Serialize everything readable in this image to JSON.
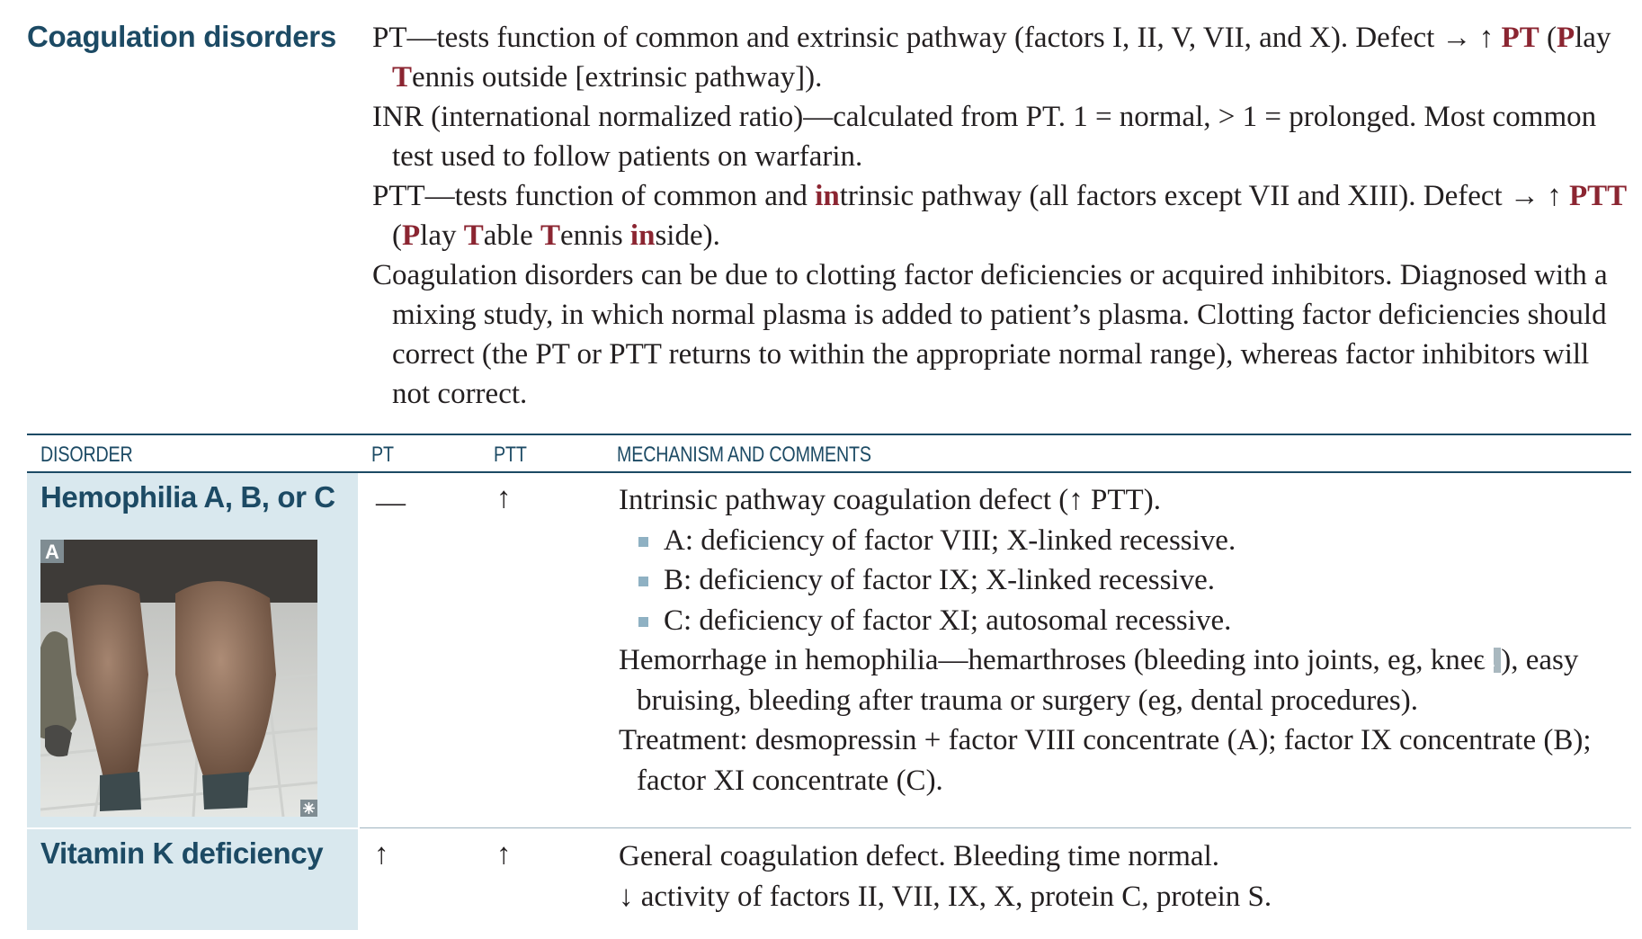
{
  "section_title": "Coagulation disorders",
  "intro": {
    "p1": {
      "a": "PT—tests function of common and extrinsic pathway (factors I, II, V, VII, and X). Defect → ↑ ",
      "b": "PT",
      "c": " (",
      "d": "P",
      "e": "lay ",
      "f": "T",
      "g": "ennis outside [extrinsic pathway])."
    },
    "p2": "INR (international normalized ratio)—calculated from PT. 1 = normal, > 1 = prolonged. Most common test used to follow patients on warfarin.",
    "p3": {
      "a": "PTT—tests function of common and ",
      "b": "in",
      "c": "trinsic pathway (all factors except VII and XIII). Defect → ↑ ",
      "d": "PTT",
      "e": " (",
      "f": "P",
      "g": "lay ",
      "h": "T",
      "i": "able ",
      "j": "T",
      "k": "ennis ",
      "l": "in",
      "m": "side)."
    },
    "p4": "Coagulation disorders can be due to clotting factor deficiencies or acquired inhibitors. Diagnosed with a mixing study, in which normal plasma is added to patient’s plasma. Clotting factor deficiencies should correct (the PT or PTT returns to within the appropriate normal range), whereas factor inhibitors will not correct."
  },
  "table": {
    "headers": {
      "disorder": "DISORDER",
      "pt": "PT",
      "ptt": "PTT",
      "mechanism": "MECHANISM AND COMMENTS"
    },
    "rows": [
      {
        "disorder": "Hemophilia A, B, or C",
        "pt": "—",
        "ptt": "↑",
        "figure_label": "A",
        "line1": "Intrinsic pathway coagulation defect (↑ PTT).",
        "bullets": [
          "A: deficiency of factor VIII; X-linked recessive.",
          "B: deficiency of factor IX; X-linked recessive.",
          "C: deficiency of factor XI; autosomal recessive."
        ],
        "hemorrhage": {
          "a": "Hemorrhage in hemophilia—hemarthroses (bleeding into joints, eg, knee ",
          "tag": "A",
          "b": "), easy bruising, bleeding after trauma or surgery (eg, dental procedures)."
        },
        "treatment": "Treatment: desmopressin + factor VIII concentrate (A); factor IX concentrate (B); factor XI concentrate (C)."
      },
      {
        "disorder": "Vitamin K deficiency",
        "pt": "↑",
        "ptt": "↑",
        "line1": "General coagulation defect. Bleeding time normal.",
        "line2": "↓ activity of factors II, VII, IX, X, protein C, protein S."
      }
    ]
  }
}
